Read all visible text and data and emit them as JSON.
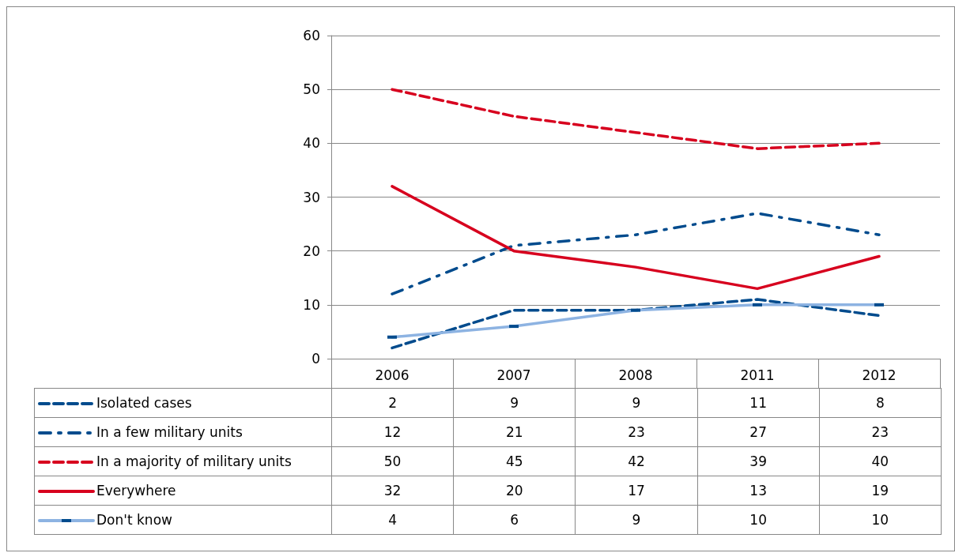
{
  "chart_data": {
    "type": "line",
    "categories": [
      "2006",
      "2007",
      "2008",
      "2011",
      "2012"
    ],
    "series": [
      {
        "name": "Isolated cases",
        "color": "#004b8d",
        "line_style": "dashed",
        "values": [
          2,
          9,
          9,
          11,
          8
        ]
      },
      {
        "name": "In a few military units",
        "color": "#004b8d",
        "line_style": "dashed",
        "values": [
          12,
          21,
          23,
          27,
          23
        ]
      },
      {
        "name": "In a majority of military units",
        "color": "#d7001e",
        "line_style": "dashed",
        "values": [
          50,
          45,
          42,
          39,
          40
        ]
      },
      {
        "name": "Everywhere",
        "color": "#d7001e",
        "line_style": "solid",
        "values": [
          32,
          20,
          17,
          13,
          19
        ]
      },
      {
        "name": "Don't know",
        "color": "#8db3e2",
        "line_style": "solid",
        "marker": "square",
        "values": [
          4,
          6,
          9,
          10,
          10
        ]
      }
    ],
    "ylim": [
      0,
      60
    ],
    "yticks": [
      0,
      10,
      20,
      30,
      40,
      50,
      60
    ],
    "grid": "y",
    "legend": "bottom left",
    "data_labels": true
  }
}
